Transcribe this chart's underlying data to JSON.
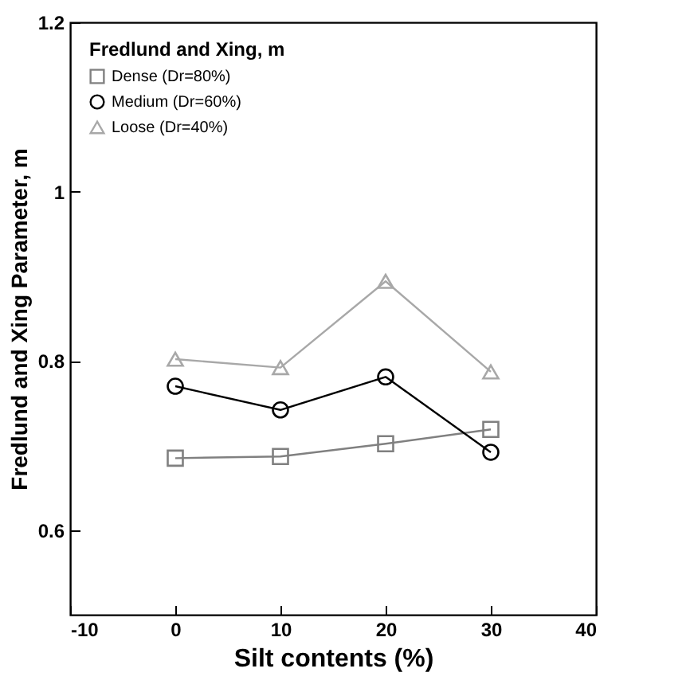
{
  "chart_data": {
    "type": "line",
    "xlabel": "Silt contents (%)",
    "ylabel": "Fredlund and Xing Parameter, m",
    "legend_title": "Fredlund and Xing, m",
    "legend": "top left",
    "x": [
      0,
      10,
      20,
      30
    ],
    "xlim": [
      -10,
      40
    ],
    "xticks": [
      -10,
      0,
      10,
      20,
      30,
      40
    ],
    "ylim": [
      0.5,
      1.2
    ],
    "yticks": [
      0.6,
      0.8,
      1,
      1.2
    ],
    "grid": false,
    "series": [
      {
        "name": "Dense    (Dr=80%)",
        "color": "#808080",
        "marker": "square",
        "values": [
          0.685,
          0.687,
          0.702,
          0.719
        ]
      },
      {
        "name": "Medium  (Dr=60%)",
        "color": "#000000",
        "marker": "circle",
        "values": [
          0.77,
          0.742,
          0.781,
          0.692
        ]
      },
      {
        "name": "Loose    (Dr=40%)",
        "color": "#a8a8a8",
        "marker": "triangle",
        "values": [
          0.802,
          0.792,
          0.894,
          0.787
        ]
      }
    ]
  }
}
